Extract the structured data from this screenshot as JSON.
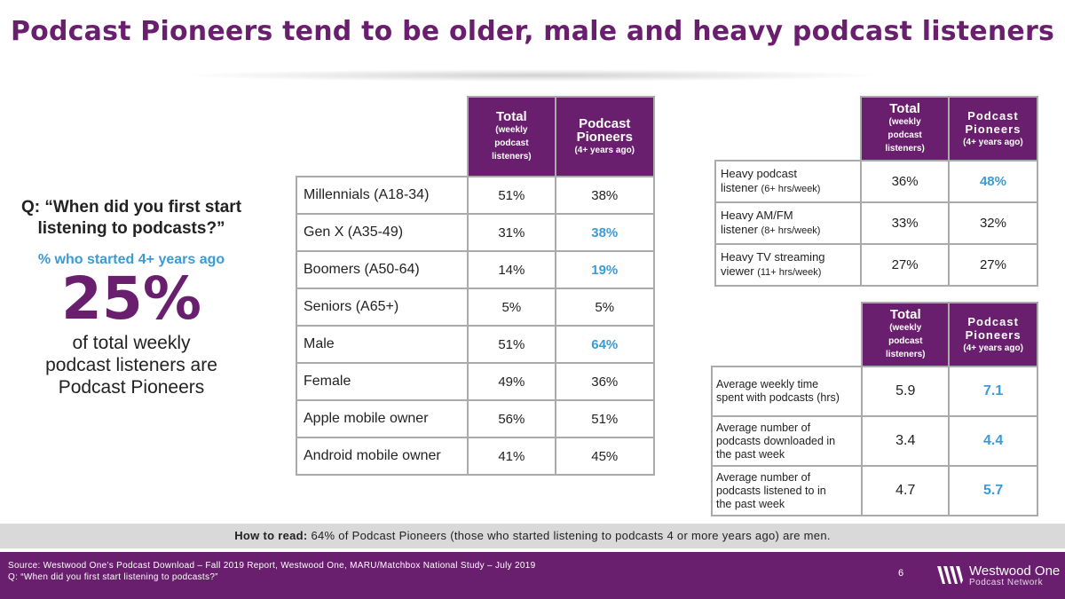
{
  "title": "Podcast Pioneers tend to be older, male and heavy podcast listeners",
  "left": {
    "question_line1": "Q: “When did you first start",
    "question_line2": "listening to podcasts?”",
    "pct_label": "%  who started 4+ years ago",
    "big_pct": "25%",
    "desc_line1": "of total weekly",
    "desc_line2": "podcast listeners are",
    "desc_line3": "Podcast Pioneers"
  },
  "headers": {
    "total_main": "Total",
    "total_sub1": "(weekly",
    "total_sub2": "podcast",
    "total_sub3": "listeners)",
    "pioneers_main1": "Podcast",
    "pioneers_main2": "Pioneers",
    "pioneers_sub": "(4+ years ago)"
  },
  "demo_table": {
    "rows": [
      {
        "label": "Millennials (A18-34)",
        "total": "51%",
        "pioneers": "38%",
        "highlight": false
      },
      {
        "label": "Gen X (A35-49)",
        "total": "31%",
        "pioneers": "38%",
        "highlight": true
      },
      {
        "label": "Boomers (A50-64)",
        "total": "14%",
        "pioneers": "19%",
        "highlight": true
      },
      {
        "label": "Seniors (A65+)",
        "total": "5%",
        "pioneers": "5%",
        "highlight": false
      },
      {
        "label": "Male",
        "total": "51%",
        "pioneers": "64%",
        "highlight": true
      },
      {
        "label": "Female",
        "total": "49%",
        "pioneers": "36%",
        "highlight": false
      },
      {
        "label": "Apple mobile owner",
        "total": "56%",
        "pioneers": "51%",
        "highlight": false
      },
      {
        "label": "Android mobile owner",
        "total": "41%",
        "pioneers": "45%",
        "highlight": false
      }
    ]
  },
  "media_table": {
    "rows": [
      {
        "label1": "Heavy podcast",
        "label2": "listener ",
        "qual": "(6+ hrs/week)",
        "total": "36%",
        "pioneers": "48%",
        "highlight": true
      },
      {
        "label1": "Heavy AM/FM",
        "label2": "listener ",
        "qual": "(8+ hrs/week)",
        "total": "33%",
        "pioneers": "32%",
        "highlight": false
      },
      {
        "label1": "Heavy TV streaming",
        "label2": "viewer ",
        "qual": "(11+ hrs/week)",
        "total": "27%",
        "pioneers": "27%",
        "highlight": false
      }
    ]
  },
  "usage_table": {
    "rows": [
      {
        "label1": "Average weekly time",
        "label2": "spent with podcasts (hrs)",
        "label3": "",
        "total": "5.9",
        "pioneers": "7.1",
        "highlight": true
      },
      {
        "label1": "Average number of",
        "label2": "podcasts downloaded in",
        "label3": "the past week",
        "total": "3.4",
        "pioneers": "4.4",
        "highlight": true
      },
      {
        "label1": "Average number of",
        "label2": "podcasts listened to in",
        "label3": "the past week",
        "total": "4.7",
        "pioneers": "5.7",
        "highlight": true
      }
    ]
  },
  "howto": {
    "bold": "How to read:",
    "text": " 64% of Podcast Pioneers (those who started listening to podcasts 4 or more years ago) are men."
  },
  "footer": {
    "source_line1": "Source: Westwood One’s Podcast Download – Fall 2019 Report, Westwood One, MARU/Matchbox National Study – July 2019",
    "source_line2": "Q: “When did you first start listening to podcasts?”",
    "page_number": "6",
    "logo_name": "Westwood One",
    "logo_sub": "Podcast Network"
  },
  "colors": {
    "brand_purple": "#6a1f6e",
    "highlight_blue": "#3a9bd5",
    "howto_bg": "#d9d9d9"
  }
}
